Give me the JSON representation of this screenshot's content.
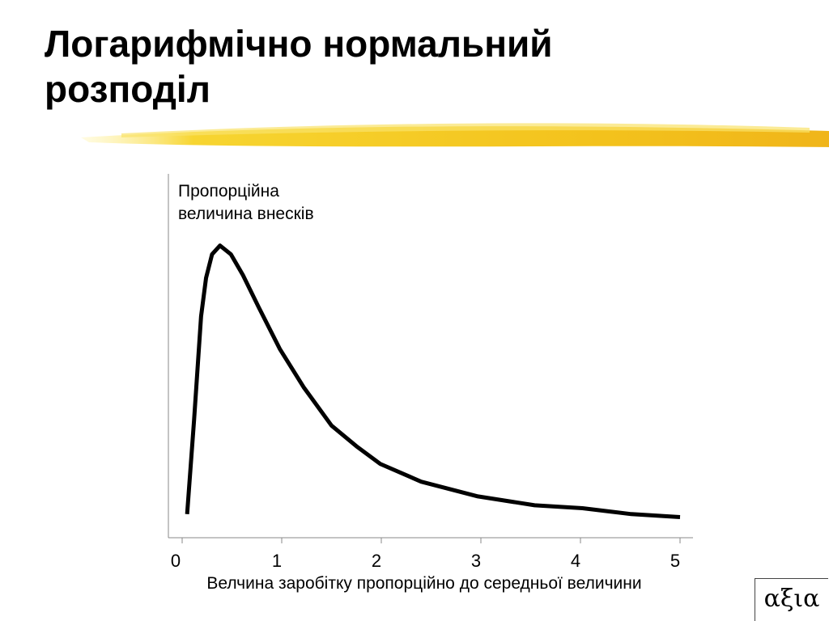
{
  "chart_data": {
    "type": "line",
    "title": "Логарифмічно нормальний розподіл",
    "ylabel": [
      "Пропорційна",
      "величина внесків"
    ],
    "xlabel": "Велчина заробітку пропорційно до середньої величини",
    "x": [
      0.05,
      0.12,
      0.19,
      0.24,
      0.3,
      0.38,
      0.49,
      0.61,
      0.77,
      0.98,
      1.22,
      1.5,
      1.75,
      1.99,
      2.4,
      2.97,
      3.54,
      4.02,
      4.51,
      5
    ],
    "series": [
      {
        "color": "#000000",
        "values": [
          0.08,
          0.4,
          0.75,
          0.88,
          0.96,
          0.99,
          0.96,
          0.89,
          0.78,
          0.64,
          0.51,
          0.38,
          0.31,
          0.25,
          0.19,
          0.14,
          0.11,
          0.1,
          0.08,
          0.07
        ]
      }
    ],
    "xlim": [
      0,
      5
    ],
    "xticks": [
      0,
      1,
      2,
      3,
      4,
      5
    ],
    "ylim": [
      0,
      1
    ]
  },
  "logo": "αξια"
}
